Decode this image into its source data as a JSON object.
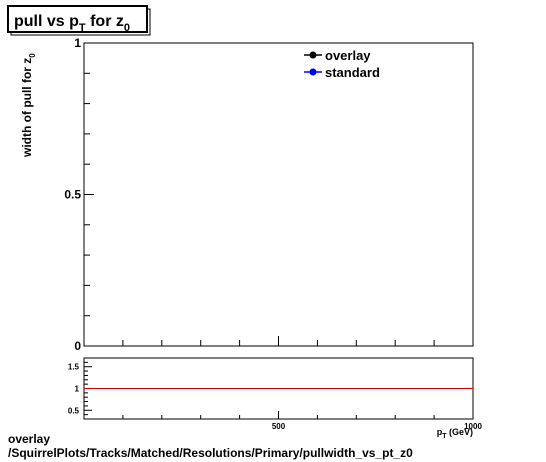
{
  "title": {
    "base": "pull vs p",
    "sub_t": "T",
    "mid": " for z",
    "sub_0": "0"
  },
  "legend": [
    {
      "label": "overlay",
      "color": "#000000"
    },
    {
      "label": "standard",
      "color": "#0000ff"
    }
  ],
  "footer": {
    "line1": "overlay",
    "line2": "/SquirrelPlots/Tracks/Matched/Resolutions/Primary/pullwidth_vs_pt_z0"
  },
  "chart_data": [
    {
      "type": "line",
      "title": "pull vs pT for z0",
      "ylabel": "width of pull for z0",
      "xlabel": "pT (GeV)",
      "xlim": [
        0,
        1000
      ],
      "ylim": [
        0,
        1
      ],
      "y_tick_labels": [
        "0",
        "0.5",
        "1"
      ],
      "y_tick_values": [
        0,
        0.5,
        1
      ],
      "legend_position": "top-right",
      "grid": false,
      "series": [
        {
          "name": "overlay",
          "x": [],
          "y": []
        },
        {
          "name": "standard",
          "x": [],
          "y": []
        }
      ]
    },
    {
      "type": "line",
      "xlim": [
        0,
        1000
      ],
      "ylim": [
        0.3,
        1.7
      ],
      "x_tick_labels": [
        "500",
        "1000"
      ],
      "x_tick_values": [
        500,
        1000
      ],
      "y_tick_labels": [
        "0.5",
        "1",
        "1.5"
      ],
      "y_tick_values": [
        0.5,
        1,
        1.5
      ],
      "xlabel": "pT (GeV)",
      "reference_line": {
        "y": 1,
        "color": "#cc0000"
      },
      "grid": false
    }
  ]
}
